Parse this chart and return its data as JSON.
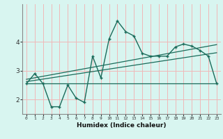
{
  "xlabel": "Humidex (Indice chaleur)",
  "bg_color": "#d8f5f0",
  "grid_color": "#f0b8b8",
  "line_color": "#1a6b5a",
  "x_ticks": [
    0,
    1,
    2,
    3,
    4,
    5,
    6,
    7,
    8,
    9,
    10,
    11,
    12,
    13,
    14,
    15,
    16,
    17,
    18,
    19,
    20,
    21,
    22,
    23
  ],
  "xlim": [
    -0.5,
    23.5
  ],
  "ylim": [
    1.5,
    5.3
  ],
  "y_ticks": [
    2,
    3,
    4
  ],
  "series1_x": [
    0,
    1,
    2,
    3,
    4,
    5,
    6,
    7,
    8,
    9,
    10,
    11,
    12,
    13,
    14,
    15,
    16,
    17,
    18,
    19,
    20,
    21,
    22,
    23
  ],
  "series1_y": [
    2.55,
    2.9,
    2.55,
    1.75,
    1.75,
    2.5,
    2.05,
    1.9,
    3.5,
    2.75,
    4.1,
    4.72,
    4.35,
    4.2,
    3.6,
    3.5,
    3.5,
    3.5,
    3.82,
    3.92,
    3.85,
    3.7,
    3.5,
    2.55
  ],
  "series2_x": [
    0,
    23
  ],
  "series2_y": [
    2.55,
    2.55
  ],
  "series3_x": [
    0,
    23
  ],
  "series3_y": [
    2.62,
    3.62
  ],
  "series4_x": [
    0,
    23
  ],
  "series4_y": [
    2.7,
    3.9
  ]
}
